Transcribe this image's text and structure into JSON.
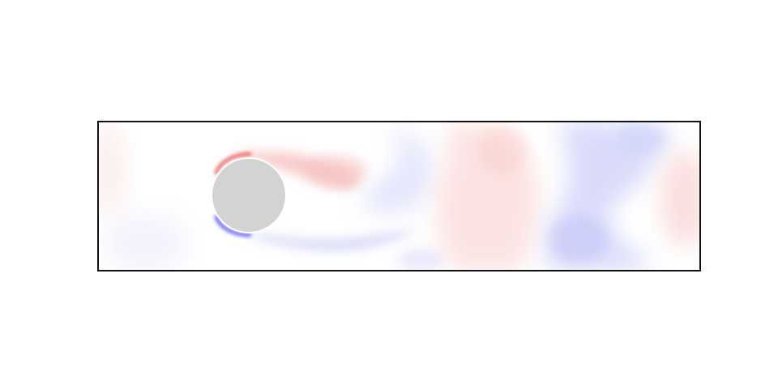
{
  "figure": {
    "description_kind": "vorticity-field",
    "colormap": {
      "positive": "#e8413c",
      "negative": "#3c3cf0",
      "neutral": "#ffffff"
    },
    "obstacle": {
      "shape": "circle",
      "fill": "#d3d3d3",
      "edge": "#ffffff"
    },
    "frame_color": "#111111",
    "background": "#ffffff"
  }
}
